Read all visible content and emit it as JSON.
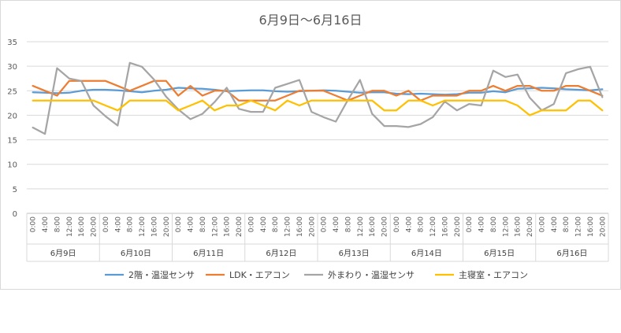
{
  "chart_data": {
    "type": "line",
    "title": "6月9日～6月16日",
    "ylim": [
      0,
      35
    ],
    "yticks": [
      0,
      5,
      10,
      15,
      20,
      25,
      30,
      35
    ],
    "grid": true,
    "legend_position": "bottom",
    "hour_labels": [
      "0:00",
      "4:00",
      "8:00",
      "12:00",
      "16:00",
      "20:00"
    ],
    "days": [
      "6月9日",
      "6月10日",
      "6月11日",
      "6月12日",
      "6月13日",
      "6月14日",
      "6月15日",
      "6月16日"
    ],
    "series": [
      {
        "name": "2階・温湿センサ",
        "color": "#5B9BD5",
        "values": [
          24.7,
          24.6,
          24.5,
          24.6,
          25.0,
          25.2,
          25.2,
          25.1,
          24.9,
          24.7,
          25.0,
          25.2,
          25.6,
          25.5,
          25.4,
          25.2,
          24.9,
          25.0,
          25.1,
          25.1,
          24.9,
          24.8,
          24.9,
          25.0,
          25.1,
          25.0,
          24.8,
          24.6,
          24.7,
          24.7,
          24.4,
          24.3,
          24.4,
          24.3,
          24.2,
          24.3,
          24.6,
          24.6,
          24.9,
          24.7,
          25.4,
          25.5,
          25.6,
          25.5,
          25.3,
          25.2,
          25.1,
          25.3
        ]
      },
      {
        "name": "LDK・エアコン",
        "color": "#ED7D31",
        "values": [
          26,
          25,
          24,
          27,
          27,
          27,
          27,
          26,
          25,
          26,
          27,
          27,
          24,
          26,
          24,
          25,
          25,
          23,
          23,
          23,
          23,
          24,
          25,
          25,
          25,
          24,
          23,
          24,
          25,
          25,
          24,
          25,
          23,
          24,
          24,
          24,
          25,
          25,
          26,
          25,
          26,
          26,
          25,
          25,
          26,
          26,
          25,
          24
        ]
      },
      {
        "name": "外まわり・温湿センサ",
        "color": "#A5A5A5",
        "values": [
          17.5,
          16.2,
          29.6,
          27.5,
          27.0,
          22.0,
          19.8,
          17.9,
          30.7,
          29.9,
          27.3,
          23.8,
          21.2,
          19.2,
          20.3,
          22.7,
          25.6,
          21.3,
          20.7,
          20.7,
          25.6,
          26.4,
          27.2,
          20.7,
          19.6,
          18.7,
          23.1,
          27.2,
          20.3,
          17.8,
          17.8,
          17.6,
          18.2,
          19.6,
          22.8,
          21.0,
          22.3,
          22.0,
          29.1,
          27.8,
          28.3,
          23.6,
          21.0,
          22.3,
          28.6,
          29.4,
          29.9,
          23.7
        ]
      },
      {
        "name": "主寝室・エアコン",
        "color": "#FFC000",
        "values": [
          23,
          23,
          23,
          23,
          23,
          23,
          22,
          21,
          23,
          23,
          23,
          23,
          21,
          22,
          23,
          21,
          22,
          22,
          23,
          22,
          21,
          23,
          22,
          23,
          23,
          23,
          23,
          23,
          23,
          21,
          21,
          23,
          23,
          22,
          23,
          23,
          23,
          23,
          23,
          23,
          22,
          20,
          21,
          21,
          21,
          23,
          23,
          21
        ]
      }
    ]
  }
}
